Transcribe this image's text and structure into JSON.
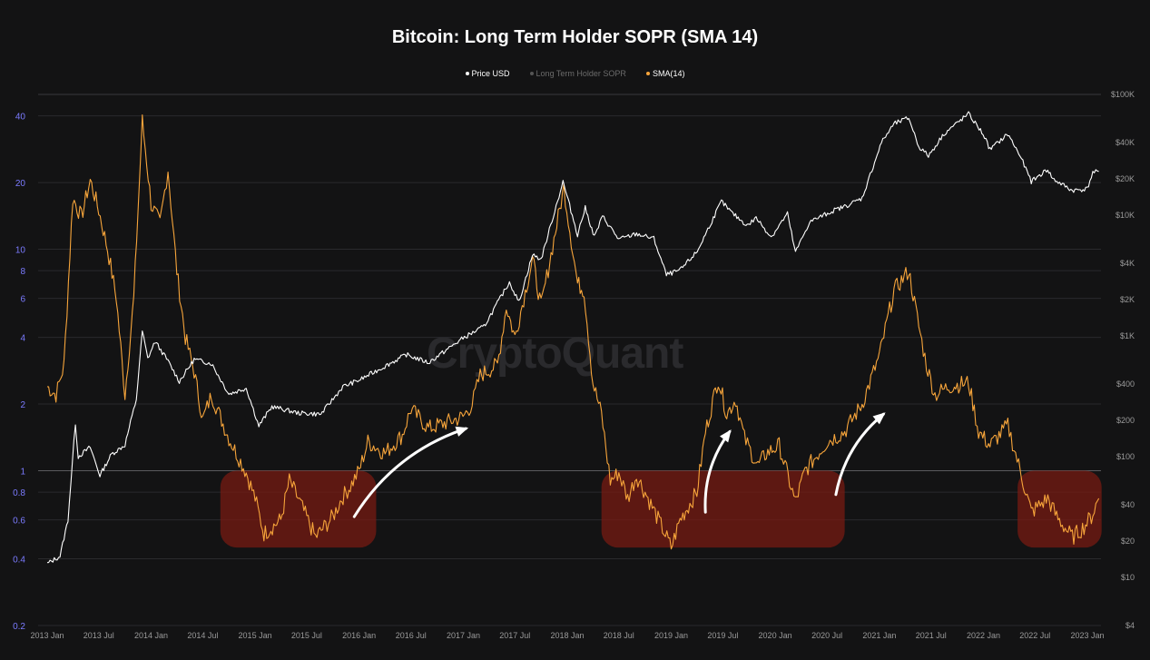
{
  "chart_data": {
    "type": "line",
    "title": "Bitcoin: Long Term Holder SOPR (SMA 14)",
    "watermark": "CryptoQuant",
    "y_scale": "log",
    "ylim_left": [
      0.2,
      50
    ],
    "ylim_right": [
      4,
      100000
    ],
    "y_left_ticks": [
      "0.2",
      "0.4",
      "0.6",
      "0.8",
      "1",
      "2",
      "4",
      "6",
      "8",
      "10",
      "20",
      "40"
    ],
    "y_right_ticks": [
      "$4",
      "$10",
      "$20",
      "$40",
      "$100",
      "$200",
      "$400",
      "$1K",
      "$2K",
      "$4K",
      "$10K",
      "$20K",
      "$40K",
      "$100K"
    ],
    "x_ticks": [
      "2013 Jan",
      "2013 Jul",
      "2014 Jan",
      "2014 Jul",
      "2015 Jan",
      "2015 Jul",
      "2016 Jan",
      "2016 Jul",
      "2017 Jan",
      "2017 Jul",
      "2018 Jan",
      "2018 Jul",
      "2019 Jan",
      "2019 Jul",
      "2020 Jan",
      "2020 Jul",
      "2021 Jan",
      "2021 Jul",
      "2022 Jan",
      "2022 Jul",
      "2023 Jan"
    ],
    "legend_placement": "top-center",
    "grid": true,
    "series": [
      {
        "name": "Price USD",
        "axis": "right",
        "color": "#ffffff",
        "points": [
          [
            "2013-01-01",
            13
          ],
          [
            "2013-02-15",
            15
          ],
          [
            "2013-03-15",
            30
          ],
          [
            "2013-04-10",
            190
          ],
          [
            "2013-04-20",
            100
          ],
          [
            "2013-06-01",
            120
          ],
          [
            "2013-07-05",
            70
          ],
          [
            "2013-08-15",
            105
          ],
          [
            "2013-10-01",
            125
          ],
          [
            "2013-11-10",
            300
          ],
          [
            "2013-12-01",
            1100
          ],
          [
            "2013-12-20",
            650
          ],
          [
            "2014-01-15",
            900
          ],
          [
            "2014-03-01",
            620
          ],
          [
            "2014-04-10",
            420
          ],
          [
            "2014-06-01",
            640
          ],
          [
            "2014-08-01",
            590
          ],
          [
            "2014-10-01",
            330
          ],
          [
            "2014-12-01",
            370
          ],
          [
            "2015-01-14",
            180
          ],
          [
            "2015-03-01",
            260
          ],
          [
            "2015-06-01",
            230
          ],
          [
            "2015-08-20",
            225
          ],
          [
            "2015-11-05",
            380
          ],
          [
            "2016-01-01",
            430
          ],
          [
            "2016-06-15",
            700
          ],
          [
            "2016-09-01",
            600
          ],
          [
            "2016-12-31",
            960
          ],
          [
            "2017-03-15",
            1200
          ],
          [
            "2017-06-12",
            2800
          ],
          [
            "2017-07-15",
            1900
          ],
          [
            "2017-09-01",
            4700
          ],
          [
            "2017-10-01",
            4300
          ],
          [
            "2017-12-17",
            19000
          ],
          [
            "2018-02-06",
            6900
          ],
          [
            "2018-03-05",
            11500
          ],
          [
            "2018-04-06",
            6600
          ],
          [
            "2018-05-05",
            9800
          ],
          [
            "2018-07-01",
            6300
          ],
          [
            "2018-09-01",
            7000
          ],
          [
            "2018-11-01",
            6400
          ],
          [
            "2018-12-15",
            3200
          ],
          [
            "2019-02-01",
            3500
          ],
          [
            "2019-04-02",
            5000
          ],
          [
            "2019-06-26",
            13000
          ],
          [
            "2019-08-01",
            10500
          ],
          [
            "2019-09-25",
            8200
          ],
          [
            "2019-10-26",
            9500
          ],
          [
            "2019-12-18",
            6600
          ],
          [
            "2020-02-13",
            10300
          ],
          [
            "2020-03-12",
            4900
          ],
          [
            "2020-05-01",
            8800
          ],
          [
            "2020-07-27",
            11000
          ],
          [
            "2020-09-01",
            11800
          ],
          [
            "2020-11-01",
            13800
          ],
          [
            "2021-01-08",
            40000
          ],
          [
            "2021-02-21",
            57000
          ],
          [
            "2021-04-14",
            64000
          ],
          [
            "2021-05-19",
            37000
          ],
          [
            "2021-06-22",
            31000
          ],
          [
            "2021-08-15",
            47000
          ],
          [
            "2021-09-06",
            52000
          ],
          [
            "2021-11-10",
            69000
          ],
          [
            "2021-12-31",
            47000
          ],
          [
            "2022-01-24",
            35000
          ],
          [
            "2022-03-28",
            47000
          ],
          [
            "2022-05-10",
            31000
          ],
          [
            "2022-06-18",
            19000
          ],
          [
            "2022-08-15",
            24000
          ],
          [
            "2022-09-01",
            20000
          ],
          [
            "2022-11-09",
            16000
          ],
          [
            "2022-12-31",
            16500
          ],
          [
            "2023-01-20",
            22500
          ],
          [
            "2023-02-10",
            23000
          ]
        ]
      },
      {
        "name": "Long Term Holder SOPR",
        "axis": "left",
        "color": "#555555",
        "points": []
      },
      {
        "name": "SMA(14)",
        "axis": "left",
        "color": "#f7a53b",
        "points": [
          [
            "2013-01-01",
            2.4
          ],
          [
            "2013-02-01",
            2.2
          ],
          [
            "2013-03-01",
            3.0
          ],
          [
            "2013-04-01",
            17.0
          ],
          [
            "2013-05-01",
            14.0
          ],
          [
            "2013-06-01",
            20.5
          ],
          [
            "2013-07-01",
            15.0
          ],
          [
            "2013-08-01",
            10.0
          ],
          [
            "2013-09-01",
            6.0
          ],
          [
            "2013-10-01",
            2.2
          ],
          [
            "2013-11-01",
            6.0
          ],
          [
            "2013-12-01",
            38.0
          ],
          [
            "2014-01-01",
            16.0
          ],
          [
            "2014-02-01",
            13.0
          ],
          [
            "2014-03-01",
            23.0
          ],
          [
            "2014-04-01",
            8.0
          ],
          [
            "2014-05-01",
            4.0
          ],
          [
            "2014-06-01",
            2.8
          ],
          [
            "2014-07-01",
            1.7
          ],
          [
            "2014-08-01",
            2.2
          ],
          [
            "2014-10-01",
            1.4
          ],
          [
            "2014-12-01",
            0.98
          ],
          [
            "2015-01-01",
            0.75
          ],
          [
            "2015-02-01",
            0.52
          ],
          [
            "2015-04-01",
            0.6
          ],
          [
            "2015-05-01",
            0.9
          ],
          [
            "2015-06-01",
            0.75
          ],
          [
            "2015-08-01",
            0.5
          ],
          [
            "2015-10-01",
            0.62
          ],
          [
            "2015-11-01",
            0.75
          ],
          [
            "2015-12-01",
            0.85
          ],
          [
            "2016-01-01",
            1.0
          ],
          [
            "2016-02-01",
            1.35
          ],
          [
            "2016-04-01",
            1.2
          ],
          [
            "2016-06-01",
            1.45
          ],
          [
            "2016-07-01",
            1.9
          ],
          [
            "2016-09-01",
            1.55
          ],
          [
            "2016-12-31",
            1.75
          ],
          [
            "2017-02-01",
            2.0
          ],
          [
            "2017-03-01",
            2.7
          ],
          [
            "2017-05-01",
            3.0
          ],
          [
            "2017-06-01",
            5.5
          ],
          [
            "2017-07-01",
            4.0
          ],
          [
            "2017-09-01",
            9.0
          ],
          [
            "2017-10-01",
            5.5
          ],
          [
            "2017-12-20",
            19.0
          ],
          [
            "2018-01-15",
            11.0
          ],
          [
            "2018-02-06",
            7.0
          ],
          [
            "2018-03-01",
            6.5
          ],
          [
            "2018-04-01",
            2.5
          ],
          [
            "2018-05-01",
            1.8
          ],
          [
            "2018-06-01",
            0.9
          ],
          [
            "2018-07-01",
            0.98
          ],
          [
            "2018-08-01",
            0.75
          ],
          [
            "2018-09-01",
            0.95
          ],
          [
            "2018-10-01",
            0.8
          ],
          [
            "2018-12-01",
            0.55
          ],
          [
            "2019-01-01",
            0.45
          ],
          [
            "2019-02-01",
            0.6
          ],
          [
            "2019-04-01",
            0.8
          ],
          [
            "2019-05-01",
            1.5
          ],
          [
            "2019-06-15",
            2.6
          ],
          [
            "2019-07-15",
            1.8
          ],
          [
            "2019-08-15",
            2.1
          ],
          [
            "2019-09-15",
            1.4
          ],
          [
            "2019-11-01",
            1.05
          ],
          [
            "2019-12-01",
            1.2
          ],
          [
            "2020-01-15",
            1.3
          ],
          [
            "2020-03-12",
            0.72
          ],
          [
            "2020-04-15",
            1.0
          ],
          [
            "2020-07-01",
            1.35
          ],
          [
            "2020-09-01",
            1.5
          ],
          [
            "2020-11-01",
            2.0
          ],
          [
            "2021-01-01",
            3.3
          ],
          [
            "2021-02-21",
            6.5
          ],
          [
            "2021-04-14",
            8.0
          ],
          [
            "2021-05-19",
            4.5
          ],
          [
            "2021-06-15",
            3.0
          ],
          [
            "2021-07-15",
            2.2
          ],
          [
            "2021-09-01",
            2.4
          ],
          [
            "2021-11-10",
            2.5
          ],
          [
            "2021-12-15",
            1.5
          ],
          [
            "2022-01-24",
            1.3
          ],
          [
            "2022-03-28",
            1.6
          ],
          [
            "2022-05-10",
            1.0
          ],
          [
            "2022-06-18",
            0.65
          ],
          [
            "2022-08-15",
            0.75
          ],
          [
            "2022-09-15",
            0.62
          ],
          [
            "2022-11-09",
            0.5
          ],
          [
            "2022-12-15",
            0.55
          ],
          [
            "2023-01-15",
            0.62
          ],
          [
            "2023-02-10",
            0.75
          ]
        ]
      }
    ],
    "highlight_regions": [
      {
        "x_start": "2014-09-01",
        "x_end": "2016-03-01",
        "y_low": 0.45,
        "y_high": 1.0
      },
      {
        "x_start": "2018-05-01",
        "x_end": "2020-09-01",
        "y_low": 0.45,
        "y_high": 1.0
      },
      {
        "x_start": "2022-05-01",
        "x_end": "2023-02-20",
        "y_low": 0.45,
        "y_high": 1.0
      }
    ],
    "annotations": [
      "arrow",
      "arrow",
      "arrow",
      "arrow"
    ]
  }
}
